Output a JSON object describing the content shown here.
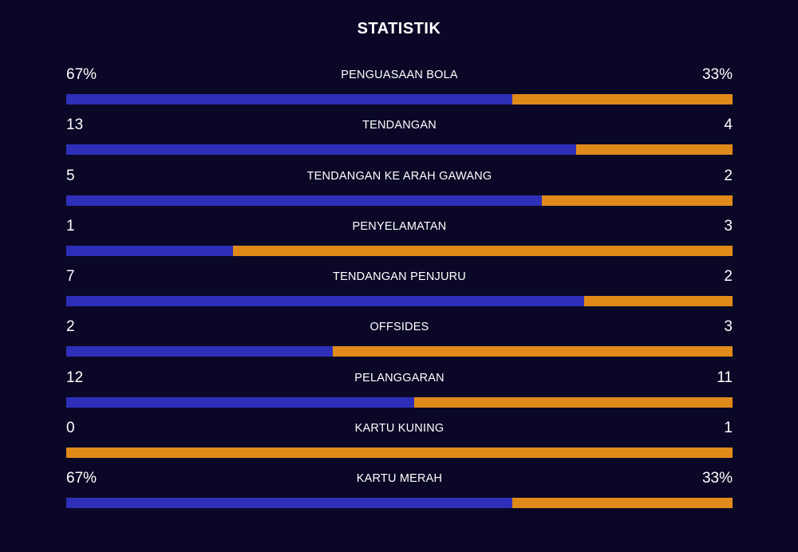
{
  "title": "STATISTIK",
  "colors": {
    "background": "#0a0826",
    "home": "#2e2fb8",
    "away": "#e08a1a",
    "text": "#ffffff"
  },
  "stats": [
    {
      "label": "PENGUASAAN BOLA",
      "home": "67%",
      "away": "33%",
      "home_share": 0.67
    },
    {
      "label": "TENDANGAN",
      "home": "13",
      "away": "4",
      "home_share": 0.7647
    },
    {
      "label": "TENDANGAN KE ARAH GAWANG",
      "home": "5",
      "away": "2",
      "home_share": 0.7143
    },
    {
      "label": "PENYELAMATAN",
      "home": "1",
      "away": "3",
      "home_share": 0.25
    },
    {
      "label": "TENDANGAN PENJURU",
      "home": "7",
      "away": "2",
      "home_share": 0.7778
    },
    {
      "label": "OFFSIDES",
      "home": "2",
      "away": "3",
      "home_share": 0.4
    },
    {
      "label": "PELANGGARAN",
      "home": "12",
      "away": "11",
      "home_share": 0.5217
    },
    {
      "label": "KARTU KUNING",
      "home": "0",
      "away": "1",
      "home_share": 0.0
    },
    {
      "label": "KARTU MERAH",
      "home": "67%",
      "away": "33%",
      "home_share": 0.67
    }
  ]
}
